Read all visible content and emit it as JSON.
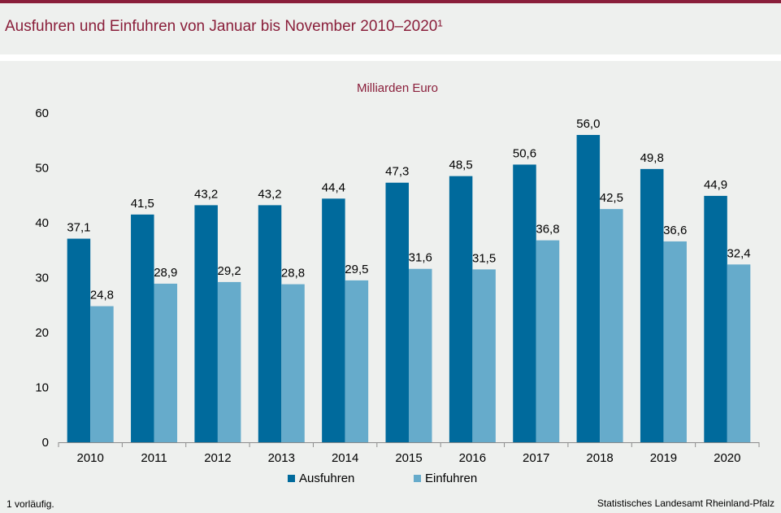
{
  "header": {
    "title": "Ausfuhren und Einfuhren von Januar bis November 2010–2020¹"
  },
  "footer": {
    "footnote": "1 vorläufig.",
    "source": "Statistisches Landesamt Rheinland-Pfalz"
  },
  "colors": {
    "brand": "#8a1f3b",
    "ausfuhren": "#006a9c",
    "einfuhren": "#66abcb"
  },
  "chart_data": {
    "type": "bar",
    "unit_label": "Milliarden Euro",
    "categories": [
      "2010",
      "2011",
      "2012",
      "2013",
      "2014",
      "2015",
      "2016",
      "2017",
      "2018",
      "2019",
      "2020"
    ],
    "series": [
      {
        "name": "Ausfuhren",
        "values": [
          37.1,
          41.5,
          43.2,
          43.2,
          44.4,
          47.3,
          48.5,
          50.6,
          56.0,
          49.8,
          44.9
        ],
        "labels": [
          "37,1",
          "41,5",
          "43,2",
          "43,2",
          "44,4",
          "47,3",
          "48,5",
          "50,6",
          "56,0",
          "49,8",
          "44,9"
        ]
      },
      {
        "name": "Einfuhren",
        "values": [
          24.8,
          28.9,
          29.2,
          28.8,
          29.5,
          31.6,
          31.5,
          36.8,
          42.5,
          36.6,
          32.4
        ],
        "labels": [
          "24,8",
          "28,9",
          "29,2",
          "28,8",
          "29,5",
          "31,6",
          "31,5",
          "36,8",
          "42,5",
          "36,6",
          "32,4"
        ]
      }
    ],
    "ylim": [
      0,
      60
    ],
    "yticks": [
      0,
      10,
      20,
      30,
      40,
      50,
      60
    ],
    "grid": false,
    "legend": "bottom"
  }
}
